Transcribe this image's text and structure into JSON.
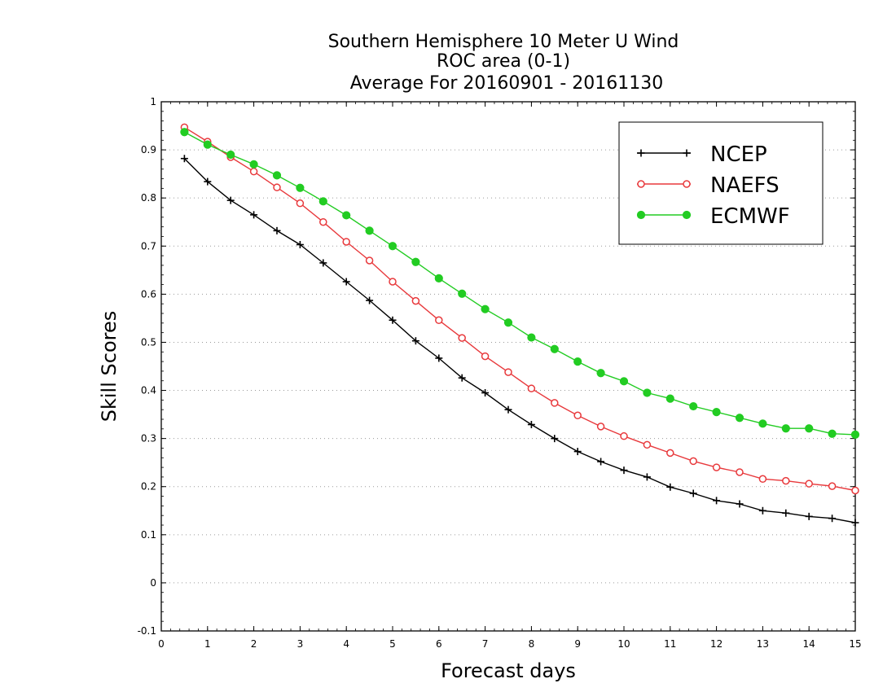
{
  "chart_data": {
    "type": "line",
    "title_lines": [
      "Southern Hemisphere 10 Meter U Wind",
      "ROC area (0-1)",
      "Average For 20160901 - 20161130"
    ],
    "xlabel": "Forecast days",
    "ylabel": "Skill Scores",
    "xlim": [
      0,
      15
    ],
    "ylim": [
      -0.1,
      1
    ],
    "x_ticks": [
      0,
      1,
      2,
      3,
      4,
      5,
      6,
      7,
      8,
      9,
      10,
      11,
      12,
      13,
      14,
      15
    ],
    "x_tick_labels": [
      "0",
      "1",
      "2",
      "3",
      "4",
      "5",
      "6",
      "7",
      "8",
      "9",
      "10",
      "11",
      "12",
      "13",
      "14",
      "15"
    ],
    "y_ticks": [
      -0.1,
      0,
      0.1,
      0.2,
      0.3,
      0.4,
      0.5,
      0.6,
      0.7,
      0.8,
      0.9,
      1
    ],
    "y_tick_labels": [
      "-0.1",
      "0",
      "0.1",
      "0.2",
      "0.3",
      "0.4",
      "0.5",
      "0.6",
      "0.7",
      "0.8",
      "0.9",
      "1"
    ],
    "grid": "horizontal dotted",
    "legend_position": "top-right",
    "x": [
      0.5,
      1,
      1.5,
      2,
      2.5,
      3,
      3.5,
      4,
      4.5,
      5,
      5.5,
      6,
      6.5,
      7,
      7.5,
      8,
      8.5,
      9,
      9.5,
      10,
      10.5,
      11,
      11.5,
      12,
      12.5,
      13,
      13.5,
      14,
      14.5,
      15
    ],
    "series": [
      {
        "name": "NCEP",
        "color": "#000000",
        "marker": "plus",
        "values": [
          0.882,
          0.834,
          0.795,
          0.765,
          0.732,
          0.703,
          0.665,
          0.626,
          0.587,
          0.546,
          0.503,
          0.467,
          0.426,
          0.395,
          0.36,
          0.329,
          0.3,
          0.273,
          0.252,
          0.234,
          0.22,
          0.199,
          0.186,
          0.171,
          0.164,
          0.15,
          0.145,
          0.138,
          0.134,
          0.125
        ]
      },
      {
        "name": "NAEFS",
        "color": "#e8393c",
        "marker": "open-circle",
        "values": [
          0.947,
          0.917,
          0.885,
          0.855,
          0.822,
          0.789,
          0.75,
          0.709,
          0.67,
          0.626,
          0.586,
          0.546,
          0.509,
          0.471,
          0.438,
          0.404,
          0.374,
          0.348,
          0.325,
          0.305,
          0.287,
          0.27,
          0.253,
          0.24,
          0.23,
          0.216,
          0.212,
          0.206,
          0.201,
          0.192
        ]
      },
      {
        "name": "ECMWF",
        "color": "#22cc22",
        "marker": "filled-circle",
        "values": [
          0.937,
          0.911,
          0.89,
          0.87,
          0.847,
          0.821,
          0.793,
          0.764,
          0.732,
          0.7,
          0.667,
          0.633,
          0.601,
          0.569,
          0.541,
          0.51,
          0.486,
          0.46,
          0.436,
          0.419,
          0.395,
          0.383,
          0.367,
          0.355,
          0.343,
          0.331,
          0.321,
          0.321,
          0.31,
          0.308
        ]
      }
    ]
  }
}
